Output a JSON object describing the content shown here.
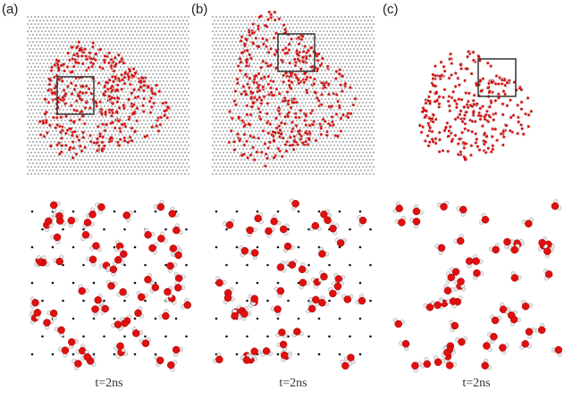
{
  "panels": [
    {
      "label": "(a)",
      "time": "t=2ns"
    },
    {
      "label": "(b)",
      "time": "t=2ns"
    },
    {
      "label": "(c)",
      "time": "t=2ns"
    }
  ],
  "colors": {
    "oxygen": "#e01010",
    "hydrogen": "#e8e8e8",
    "lattice": "#111111",
    "box": "#333333"
  }
}
